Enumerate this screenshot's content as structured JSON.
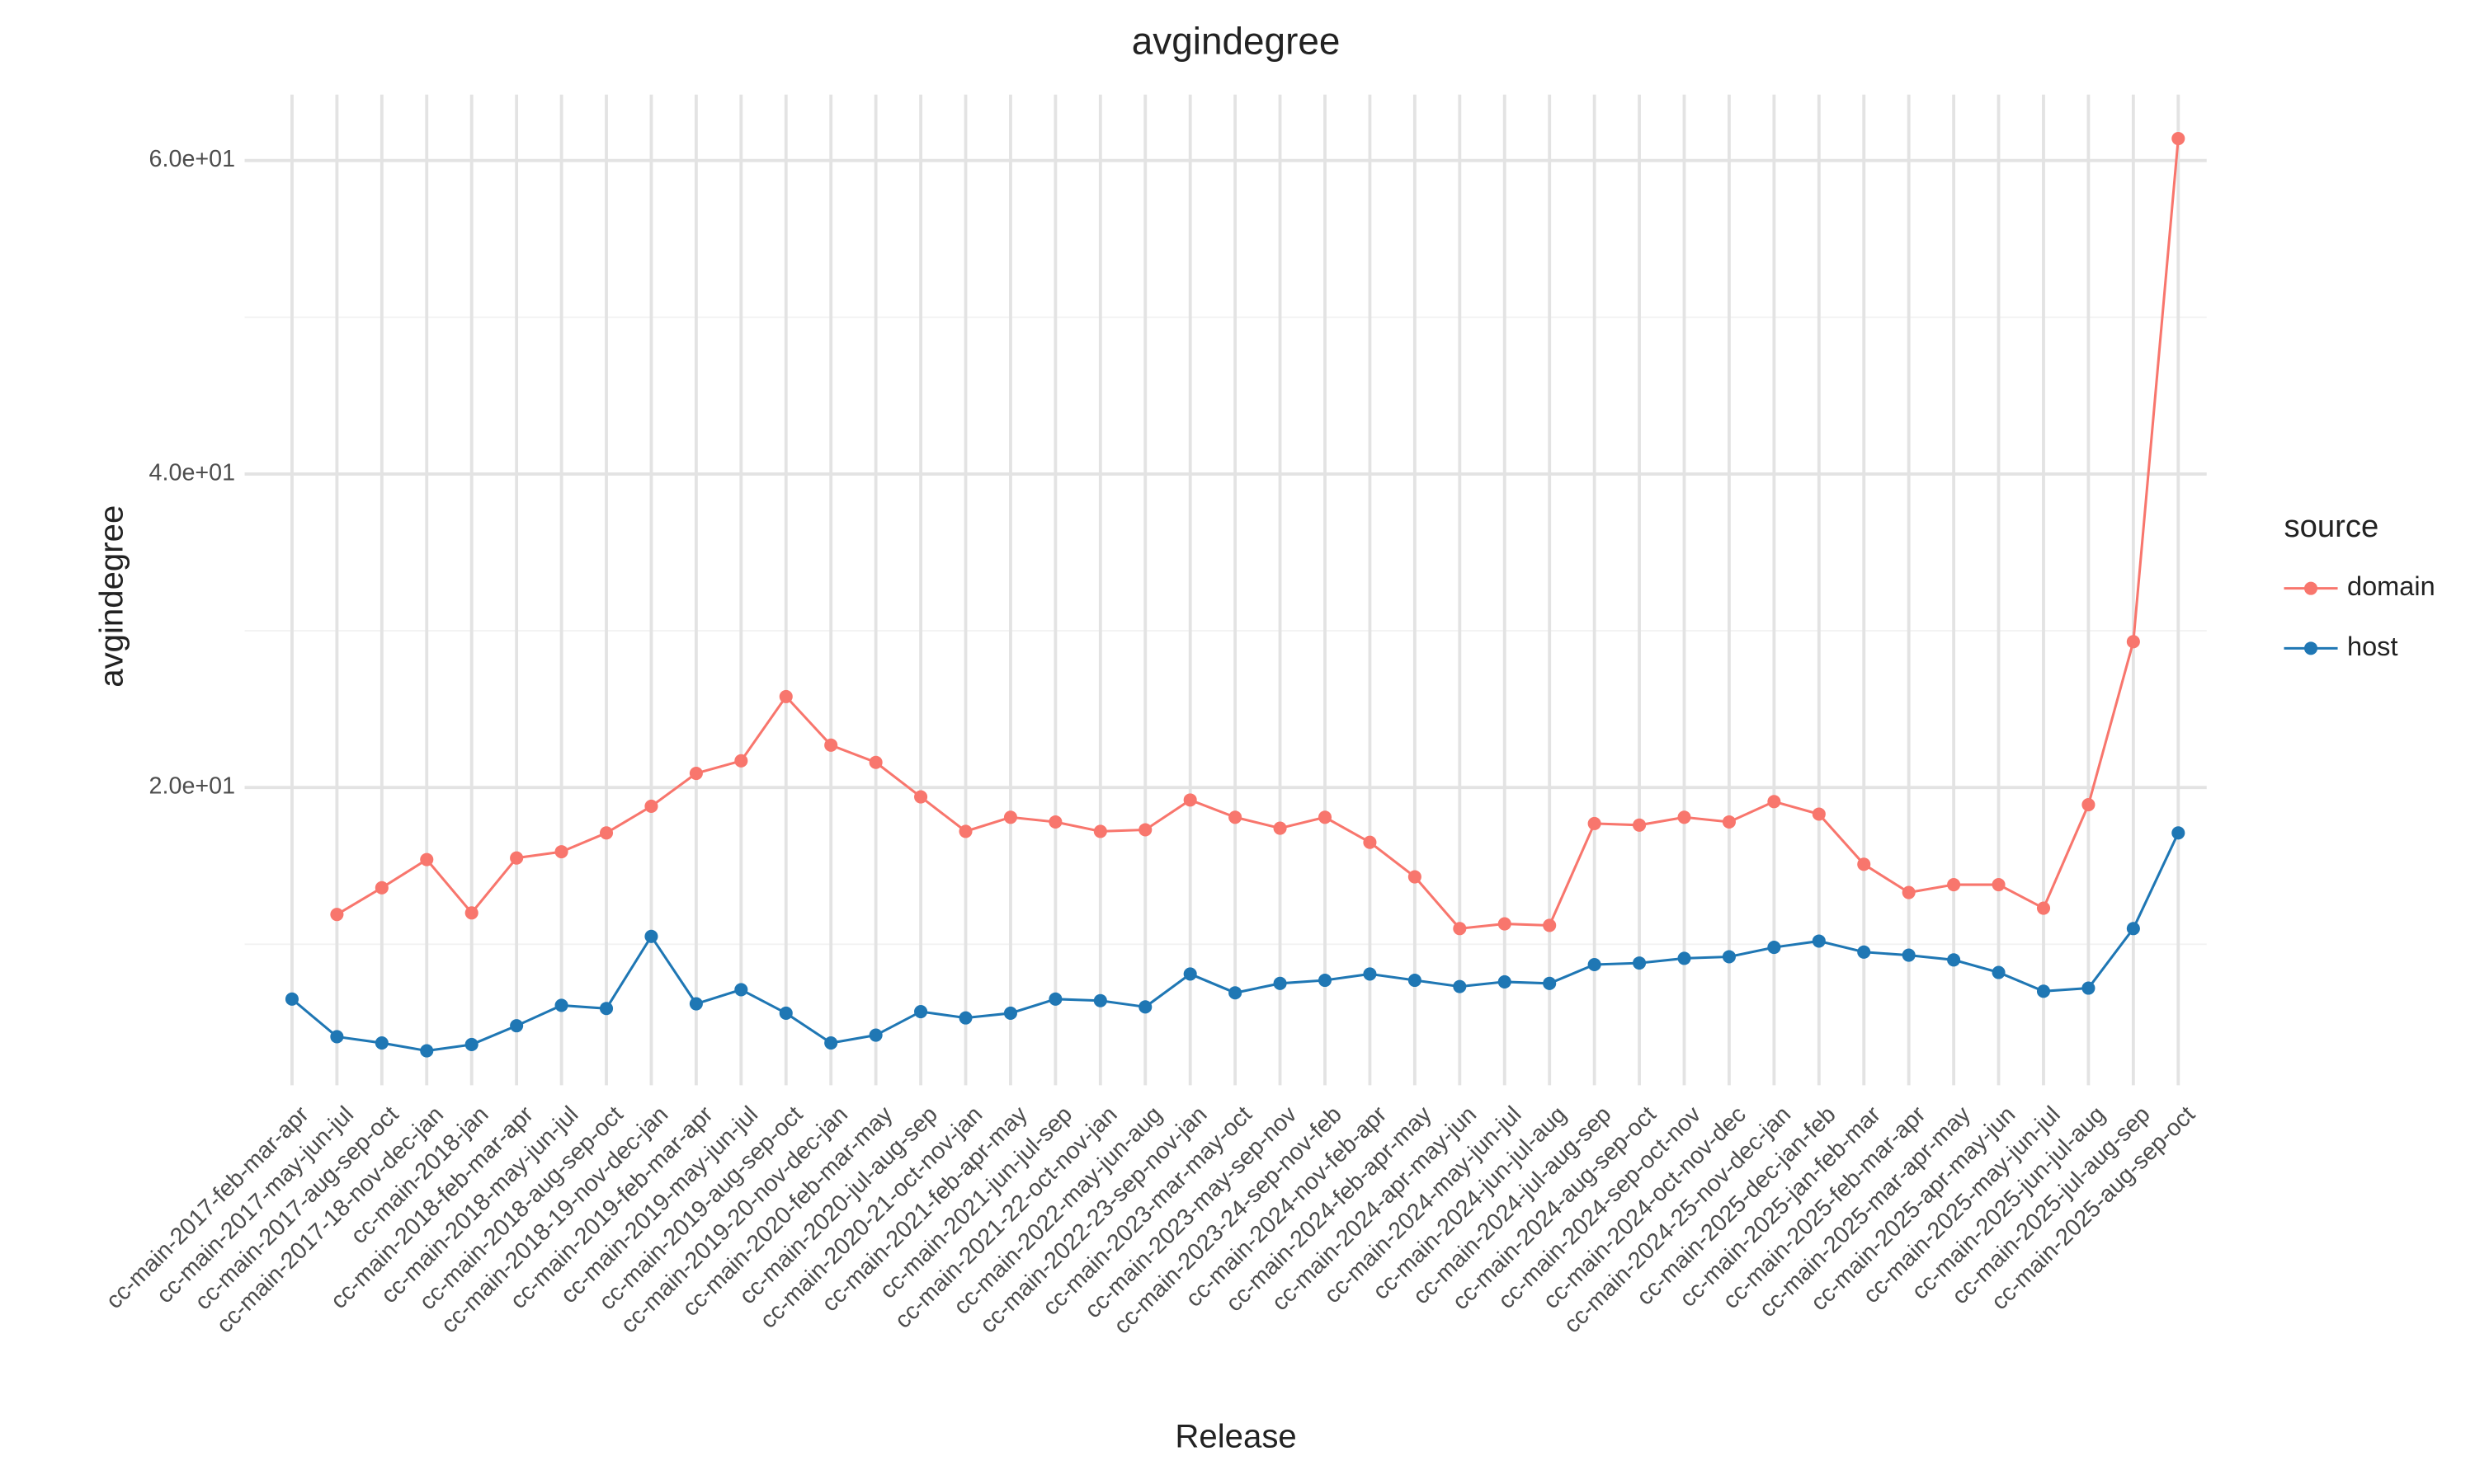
{
  "chart_data": {
    "type": "line",
    "title": "avgindegree",
    "x_label": "Release",
    "y_label": "avgindegree",
    "legend_title": "source",
    "legend": "right",
    "grid": true,
    "categories": [
      "cc-main-2017-feb-mar-apr",
      "cc-main-2017-may-jun-jul",
      "cc-main-2017-aug-sep-oct",
      "cc-main-2017-18-nov-dec-jan",
      "cc-main-2018-jan",
      "cc-main-2018-feb-mar-apr",
      "cc-main-2018-may-jun-jul",
      "cc-main-2018-aug-sep-oct",
      "cc-main-2018-19-nov-dec-jan",
      "cc-main-2019-feb-mar-apr",
      "cc-main-2019-may-jun-jul",
      "cc-main-2019-aug-sep-oct",
      "cc-main-2019-20-nov-dec-jan",
      "cc-main-2020-feb-mar-may",
      "cc-main-2020-jul-aug-sep",
      "cc-main-2020-21-oct-nov-jan",
      "cc-main-2021-feb-apr-may",
      "cc-main-2021-jun-jul-sep",
      "cc-main-2021-22-oct-nov-jan",
      "cc-main-2022-may-jun-aug",
      "cc-main-2022-23-sep-nov-jan",
      "cc-main-2023-mar-may-oct",
      "cc-main-2023-may-sep-nov",
      "cc-main-2023-24-sep-nov-feb",
      "cc-main-2024-nov-feb-apr",
      "cc-main-2024-feb-apr-may",
      "cc-main-2024-apr-may-jun",
      "cc-main-2024-may-jun-jul",
      "cc-main-2024-jun-jul-aug",
      "cc-main-2024-jul-aug-sep",
      "cc-main-2024-aug-sep-oct",
      "cc-main-2024-sep-oct-nov",
      "cc-main-2024-oct-nov-dec",
      "cc-main-2024-25-nov-dec-jan",
      "cc-main-2025-dec-jan-feb",
      "cc-main-2025-jan-feb-mar",
      "cc-main-2025-feb-mar-apr",
      "cc-main-2025-mar-apr-may",
      "cc-main-2025-apr-may-jun",
      "cc-main-2025-may-jun-jul",
      "cc-main-2025-jun-jul-aug",
      "cc-main-2025-jul-aug-sep",
      "cc-main-2025-aug-sep-oct"
    ],
    "series": [
      {
        "name": "domain",
        "color": "#f8766d",
        "values": [
          null,
          11.9,
          13.6,
          15.4,
          12.0,
          15.5,
          15.9,
          17.1,
          18.8,
          20.9,
          21.7,
          25.8,
          22.7,
          21.6,
          19.4,
          17.2,
          18.1,
          17.8,
          17.2,
          17.3,
          19.2,
          18.1,
          17.4,
          18.1,
          16.5,
          14.3,
          11.0,
          11.3,
          11.2,
          17.7,
          17.6,
          18.1,
          17.8,
          19.1,
          18.3,
          15.1,
          13.3,
          13.8,
          13.8,
          12.3,
          18.9,
          29.3,
          61.4
        ]
      },
      {
        "name": "host",
        "color": "#1f77b4",
        "values": [
          6.5,
          4.1,
          3.7,
          3.2,
          3.6,
          4.8,
          6.1,
          5.9,
          10.5,
          6.2,
          7.1,
          5.6,
          3.7,
          4.2,
          5.7,
          5.3,
          5.6,
          6.5,
          6.4,
          6.0,
          8.1,
          6.9,
          7.5,
          7.7,
          8.1,
          7.7,
          7.3,
          7.6,
          7.5,
          8.7,
          8.8,
          9.1,
          9.2,
          9.8,
          10.2,
          9.5,
          9.3,
          9.0,
          8.2,
          7.0,
          7.2,
          11.0,
          17.1
        ]
      }
    ],
    "ylim": [
      0.4,
      64.2
    ],
    "yticks": [
      {
        "value": 20,
        "label": "2.0e+01"
      },
      {
        "value": 40,
        "label": "4.0e+01"
      },
      {
        "value": 60,
        "label": "6.0e+01"
      }
    ],
    "minor_yticks": [
      10,
      30,
      50
    ]
  }
}
